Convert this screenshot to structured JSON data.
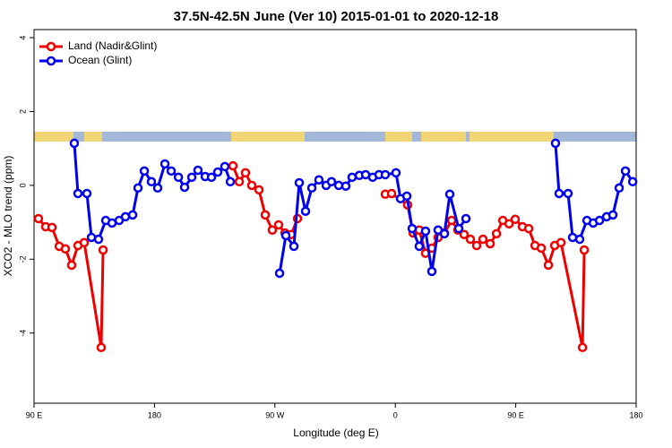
{
  "chart_data": {
    "type": "line",
    "title": "37.5N-42.5N June (Ver 10)   2015-01-01 to 2020-12-18",
    "x_label": "Longitude (deg E)",
    "y_label": "XCO2 - MLO trend (ppm)",
    "xlim": [
      90,
      540
    ],
    "ylim": [
      -5.9,
      4.22
    ],
    "xticks": [
      {
        "value": 90,
        "label": "90 E"
      },
      180,
      {
        "value": 270,
        "label": "90 W"
      },
      {
        "value": 360,
        "label": "0"
      },
      {
        "value": 450,
        "label": "90 E"
      },
      {
        "value": 540,
        "label": "180"
      }
    ],
    "yticks": [
      -4,
      -2,
      0,
      2,
      4
    ],
    "legend": "top-left",
    "series": [
      {
        "name": "Land (Nadir&Glint)",
        "color": "#ee0000",
        "x": [
          93.3,
          98.7,
          103.4,
          108.8,
          113.4,
          118.1,
          122.8,
          127.5,
          140.2,
          141.6,
          null,
          238.7,
          243.4,
          248.0,
          252.7,
          258.1,
          262.8,
          268.1,
          272.8,
          277.5,
          282.2,
          286.9,
          null,
          352.5,
          357.2,
          369.2,
          373.3,
          377.9,
          382.6,
          387.3,
          392.0,
          396.7,
          402.1,
          406.8,
          411.4,
          416.1,
          420.8,
          425.5,
          430.9,
          435.6,
          440.3,
          445.0,
          449.6,
          455.0,
          459.7,
          464.4,
          469.1,
          474.4,
          479.1,
          483.8,
          499.9,
          501.2
        ],
        "values": [
          -0.9,
          -1.12,
          -1.14,
          -1.65,
          -1.72,
          -2.16,
          -1.63,
          -1.55,
          -4.39,
          -1.75,
          null,
          0.53,
          0.1,
          0.34,
          0,
          -0.12,
          -0.8,
          -1.21,
          -1.07,
          -1.29,
          -1.33,
          -0.9,
          null,
          -0.24,
          -0.22,
          -0.53,
          -1.29,
          -1.21,
          -1.84,
          -1.7,
          -1.41,
          -1.29,
          -0.95,
          -1.21,
          -1.33,
          -1.46,
          -1.63,
          -1.46,
          -1.58,
          -1.31,
          -0.95,
          -1.04,
          -0.92,
          -1.12,
          -1.17,
          -1.63,
          -1.7,
          -2.16,
          -1.63,
          -1.55,
          -4.39,
          -1.75
        ]
      },
      {
        "name": "Ocean (Glint)",
        "color": "#0000ee",
        "x": [
          120.1,
          122.8,
          129.5,
          132.9,
          138.2,
          143.6,
          148.3,
          153.6,
          158.3,
          163.7,
          167.7,
          172.4,
          177.7,
          182.4,
          187.8,
          192.5,
          197.9,
          202.5,
          207.9,
          212.5,
          217.9,
          222.6,
          227.3,
          232.6,
          236.7,
          null,
          273.5,
          278.2,
          284.2,
          288.2,
          292.9,
          297.6,
          302.9,
          308.3,
          312.3,
          317.7,
          323.0,
          327.7,
          333.1,
          337.8,
          343.1,
          347.8,
          352.5,
          360.5,
          363.9,
          368.6,
          372.6,
          377.9,
          382.6,
          387.3,
          392.0,
          396.7,
          400.7,
          407.4,
          412.8,
          null,
          479.7,
          482.4,
          489.1,
          492.5,
          497.8,
          503.2,
          507.9,
          512.6,
          517.9,
          522.6,
          527.3,
          532.0,
          537.4
        ],
        "values": [
          1.14,
          -0.22,
          -0.22,
          -1.41,
          -1.46,
          -0.95,
          -1.02,
          -0.95,
          -0.85,
          -0.8,
          -0.07,
          0.39,
          0.1,
          -0.07,
          0.58,
          0.39,
          0.22,
          -0.05,
          0.22,
          0.41,
          0.24,
          0.22,
          0.36,
          0.51,
          0.1,
          null,
          -2.38,
          -1.36,
          -1.65,
          0.07,
          -0.7,
          -0.07,
          0.15,
          0,
          0.1,
          0,
          -0.02,
          0.22,
          0.27,
          0.29,
          0.22,
          0.29,
          0.29,
          0.34,
          -0.36,
          -0.29,
          -1.17,
          -1.65,
          -1.24,
          -2.33,
          -1.21,
          -1.31,
          -0.24,
          -1.17,
          -0.9,
          null,
          1.14,
          -0.22,
          -0.22,
          -1.41,
          -1.46,
          -0.95,
          -1.02,
          -0.95,
          -0.85,
          -0.8,
          -0.07,
          0.39,
          0.1
        ]
      }
    ]
  }
}
